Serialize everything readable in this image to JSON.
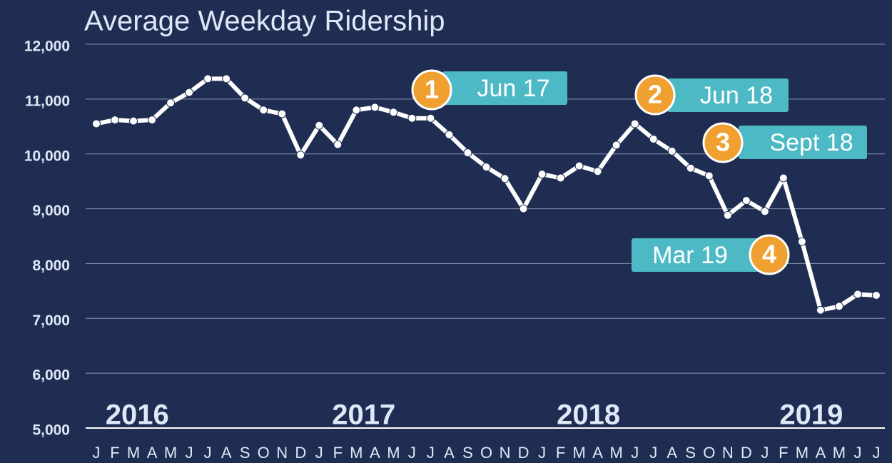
{
  "chart_data": {
    "type": "line",
    "title": "Average Weekday Ridership",
    "categories": [
      "J",
      "F",
      "M",
      "A",
      "M",
      "J",
      "J",
      "A",
      "S",
      "O",
      "N",
      "D",
      "J",
      "F",
      "M",
      "A",
      "M",
      "J",
      "J",
      "A",
      "S",
      "O",
      "N",
      "D",
      "J",
      "F",
      "M",
      "A",
      "M",
      "J",
      "J",
      "A",
      "S",
      "O",
      "N",
      "D",
      "J",
      "F",
      "M",
      "A",
      "M",
      "J",
      "J"
    ],
    "series": [
      {
        "name": "Average Weekday Ridership",
        "color": "#ffffff",
        "values": [
          10550,
          10620,
          10600,
          10620,
          10930,
          11120,
          11370,
          11370,
          11020,
          10800,
          10730,
          9980,
          10520,
          10170,
          10800,
          10850,
          10760,
          10650,
          10650,
          10350,
          10020,
          9760,
          9550,
          9000,
          9630,
          9560,
          9780,
          9680,
          10160,
          10550,
          10270,
          10050,
          9740,
          9600,
          8880,
          9150,
          8950,
          9560,
          8400,
          7150,
          7220,
          7440,
          7420
        ]
      }
    ],
    "years": [
      "2016",
      "2017",
      "2018",
      "2019"
    ],
    "annotations": [
      {
        "number": "1",
        "label": "Jun 17"
      },
      {
        "number": "2",
        "label": "Jun 18"
      },
      {
        "number": "3",
        "label": "Sept 18"
      },
      {
        "number": "4",
        "label": "Mar 19"
      }
    ],
    "ylim": [
      5000,
      12000
    ],
    "yticks": [
      {
        "value": 5000,
        "label": "5,000"
      },
      {
        "value": 6000,
        "label": "6,000"
      },
      {
        "value": 7000,
        "label": "7,000"
      },
      {
        "value": 8000,
        "label": "8,000"
      },
      {
        "value": 9000,
        "label": "9,000"
      },
      {
        "value": 10000,
        "label": "10,000"
      },
      {
        "value": 11000,
        "label": "11,000"
      },
      {
        "value": 12000,
        "label": "12,000"
      }
    ],
    "grid": true
  }
}
